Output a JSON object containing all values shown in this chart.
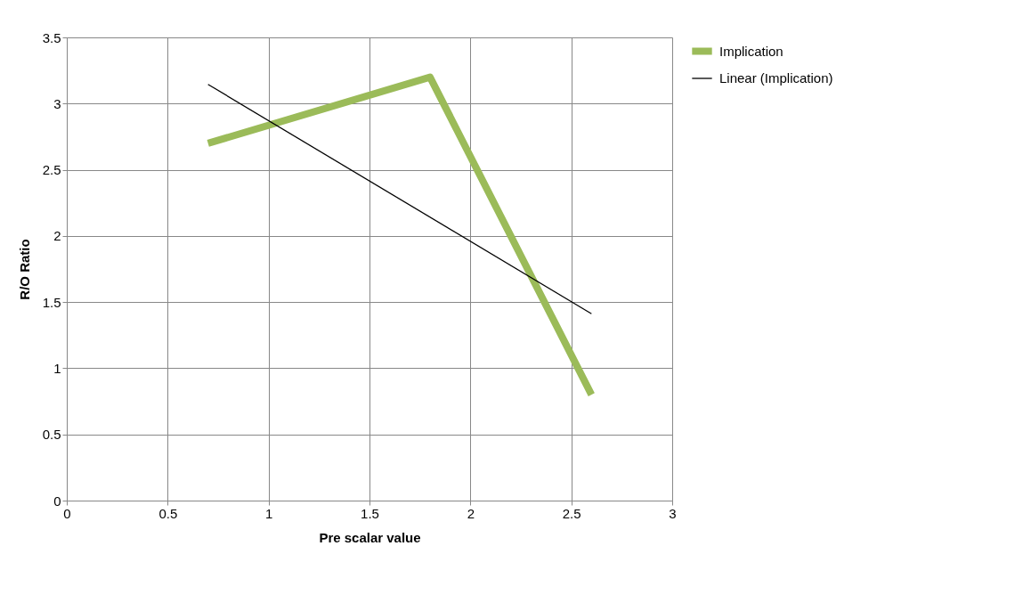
{
  "chart_data": {
    "type": "line",
    "xlabel": "Pre scalar value",
    "ylabel": "R/O Ratio",
    "xlim": [
      0,
      3
    ],
    "xticks": [
      0,
      0.5,
      1,
      1.5,
      2,
      2.5,
      3
    ],
    "ylim": [
      0,
      3.5
    ],
    "yticks": [
      0,
      0.5,
      1,
      1.5,
      2,
      2.5,
      3,
      3.5
    ],
    "grid": true,
    "legend": "right",
    "marker": "none",
    "line_style": "solid",
    "series": [
      {
        "name": "Implication",
        "color": "#9bbb59",
        "x": [
          0.7,
          1.8,
          2.6
        ],
        "values": [
          2.7,
          3.2,
          0.8
        ]
      },
      {
        "name": "Linear (Implication)",
        "color": "#000000",
        "x": [
          0.7,
          2.6
        ],
        "values": [
          3.145,
          1.412
        ]
      }
    ]
  }
}
